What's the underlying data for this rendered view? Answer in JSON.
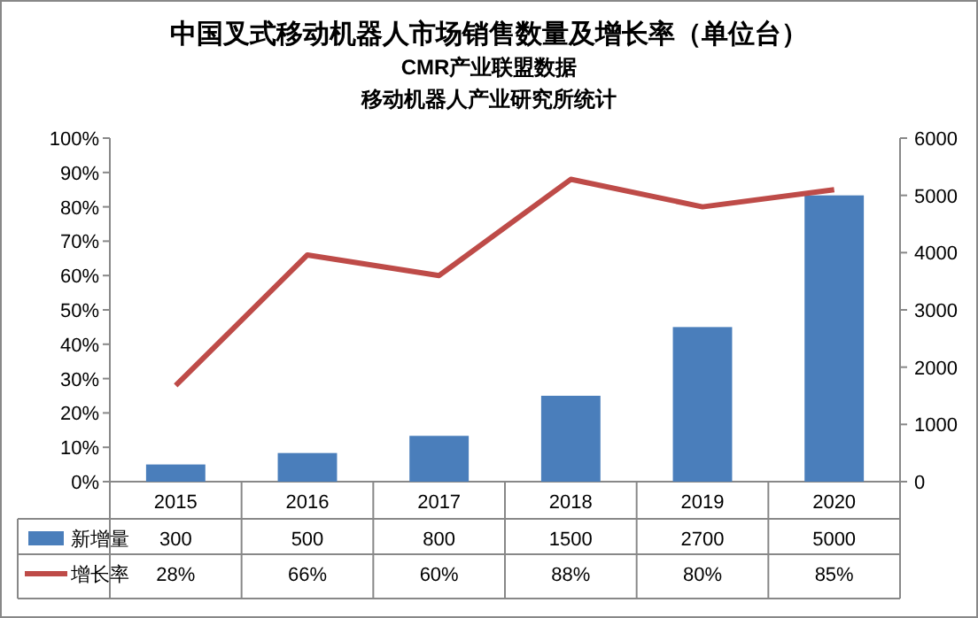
{
  "chart_data": {
    "type": "bar",
    "title": "中国叉式移动机器人市场销售数量及增长率（单位台）",
    "subtitle": "CMR产业联盟数据",
    "annotations": [
      "移动机器人产业研究所统计"
    ],
    "categories": [
      "2015",
      "2016",
      "2017",
      "2018",
      "2019",
      "2020"
    ],
    "series": [
      {
        "name": "新增量",
        "axis": "y2",
        "color": "#4a7ebb",
        "values": [
          300,
          500,
          800,
          1500,
          2700,
          5000
        ],
        "value_labels": [
          "300",
          "500",
          "800",
          "1500",
          "2700",
          "5000"
        ]
      },
      {
        "name": "增长率",
        "type": "line",
        "color": "#be4b48",
        "values": [
          28,
          66,
          60,
          88,
          80,
          85
        ],
        "value_labels": [
          "28%",
          "66%",
          "60%",
          "88%",
          "80%",
          "85%"
        ]
      }
    ],
    "ylim": [
      0,
      100
    ],
    "yticks": [
      {
        "value": 0,
        "label": "0%"
      },
      {
        "value": 10,
        "label": "10%"
      },
      {
        "value": 20,
        "label": "20%"
      },
      {
        "value": 30,
        "label": "30%"
      },
      {
        "value": 40,
        "label": "40%"
      },
      {
        "value": 50,
        "label": "50%"
      },
      {
        "value": 60,
        "label": "60%"
      },
      {
        "value": 70,
        "label": "70%"
      },
      {
        "value": 80,
        "label": "80%"
      },
      {
        "value": 90,
        "label": "90%"
      },
      {
        "value": 100,
        "label": "100%"
      }
    ],
    "y2lim": [
      0,
      6000
    ],
    "y2ticks": [
      0,
      1000,
      2000,
      3000,
      4000,
      5000,
      6000
    ],
    "legend": "bottom",
    "marker": "none",
    "line_style": "solid"
  }
}
